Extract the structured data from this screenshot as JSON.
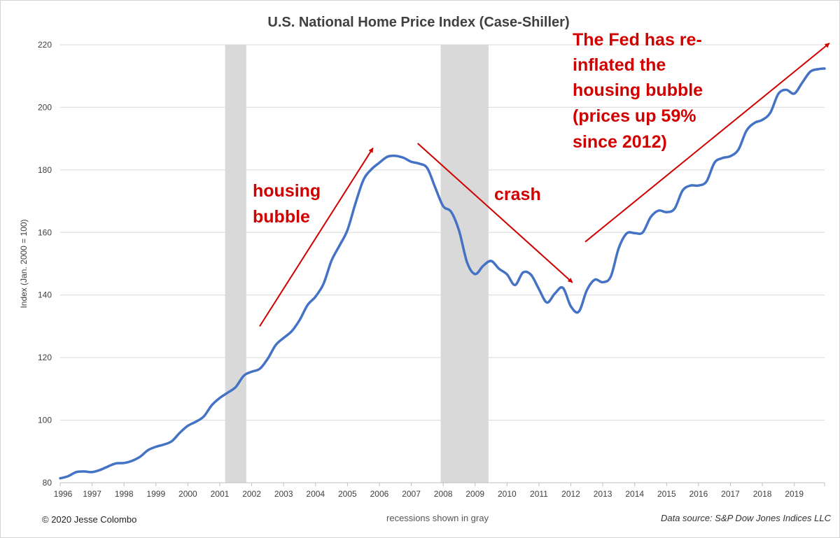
{
  "chart_data": {
    "type": "line",
    "title": "U.S. National Home Price Index (Case-Shiller)",
    "ylabel": "Index (Jan. 2000 = 100)",
    "xlabel": "",
    "xlim": [
      1996,
      2019.95
    ],
    "ylim": [
      80,
      220
    ],
    "yticks": [
      80,
      100,
      120,
      140,
      160,
      180,
      200,
      220
    ],
    "xticks": [
      "1996",
      "1997",
      "1998",
      "1999",
      "2000",
      "2001",
      "2002",
      "2003",
      "2004",
      "2005",
      "2006",
      "2007",
      "2008",
      "2009",
      "2010",
      "2011",
      "2012",
      "2013",
      "2014",
      "2015",
      "2016",
      "2017",
      "2018",
      "2019"
    ],
    "grid": "horizontal",
    "line_color": "#4472c4",
    "recession_color": "#d9d9d9",
    "annotation_color": "#d00000",
    "recessions": [
      [
        2001.17,
        2001.83
      ],
      [
        2007.92,
        2009.42
      ]
    ],
    "series": [
      {
        "points": [
          [
            1996.0,
            81.4
          ],
          [
            1996.25,
            82.1
          ],
          [
            1996.5,
            83.4
          ],
          [
            1996.75,
            83.6
          ],
          [
            1997.0,
            83.4
          ],
          [
            1997.25,
            84.1
          ],
          [
            1997.5,
            85.2
          ],
          [
            1997.75,
            86.2
          ],
          [
            1998.0,
            86.3
          ],
          [
            1998.25,
            87.0
          ],
          [
            1998.5,
            88.3
          ],
          [
            1998.75,
            90.4
          ],
          [
            1999.0,
            91.5
          ],
          [
            1999.25,
            92.2
          ],
          [
            1999.5,
            93.3
          ],
          [
            1999.75,
            96.0
          ],
          [
            2000.0,
            98.2
          ],
          [
            2000.25,
            99.5
          ],
          [
            2000.5,
            101.2
          ],
          [
            2000.75,
            104.8
          ],
          [
            2001.0,
            107.1
          ],
          [
            2001.25,
            108.8
          ],
          [
            2001.5,
            110.6
          ],
          [
            2001.75,
            114.2
          ],
          [
            2002.0,
            115.5
          ],
          [
            2002.25,
            116.4
          ],
          [
            2002.5,
            119.6
          ],
          [
            2002.75,
            124.0
          ],
          [
            2003.0,
            126.3
          ],
          [
            2003.25,
            128.4
          ],
          [
            2003.5,
            132.0
          ],
          [
            2003.75,
            136.8
          ],
          [
            2004.0,
            139.5
          ],
          [
            2004.25,
            143.6
          ],
          [
            2004.5,
            151.0
          ],
          [
            2004.75,
            155.8
          ],
          [
            2005.0,
            160.8
          ],
          [
            2005.25,
            169.3
          ],
          [
            2005.5,
            176.8
          ],
          [
            2005.75,
            180.2
          ],
          [
            2006.0,
            182.3
          ],
          [
            2006.25,
            184.2
          ],
          [
            2006.5,
            184.5
          ],
          [
            2006.75,
            183.9
          ],
          [
            2007.0,
            182.6
          ],
          [
            2007.25,
            182.0
          ],
          [
            2007.5,
            180.6
          ],
          [
            2007.75,
            174.4
          ],
          [
            2008.0,
            168.4
          ],
          [
            2008.25,
            166.6
          ],
          [
            2008.5,
            160.5
          ],
          [
            2008.75,
            150.4
          ],
          [
            2009.0,
            146.7
          ],
          [
            2009.25,
            149.3
          ],
          [
            2009.5,
            150.9
          ],
          [
            2009.75,
            148.4
          ],
          [
            2010.0,
            146.6
          ],
          [
            2010.25,
            143.2
          ],
          [
            2010.5,
            147.2
          ],
          [
            2010.75,
            146.5
          ],
          [
            2011.0,
            141.9
          ],
          [
            2011.25,
            137.6
          ],
          [
            2011.5,
            140.5
          ],
          [
            2011.75,
            142.3
          ],
          [
            2012.0,
            136.4
          ],
          [
            2012.25,
            134.7
          ],
          [
            2012.5,
            141.5
          ],
          [
            2012.75,
            144.9
          ],
          [
            2013.0,
            144.1
          ],
          [
            2013.25,
            145.9
          ],
          [
            2013.5,
            155.0
          ],
          [
            2013.75,
            159.7
          ],
          [
            2014.0,
            159.8
          ],
          [
            2014.25,
            160.0
          ],
          [
            2014.5,
            164.9
          ],
          [
            2014.75,
            167.0
          ],
          [
            2015.0,
            166.5
          ],
          [
            2015.25,
            167.6
          ],
          [
            2015.5,
            173.4
          ],
          [
            2015.75,
            175.0
          ],
          [
            2016.0,
            175.0
          ],
          [
            2016.25,
            176.3
          ],
          [
            2016.5,
            182.3
          ],
          [
            2016.75,
            183.8
          ],
          [
            2017.0,
            184.4
          ],
          [
            2017.25,
            186.5
          ],
          [
            2017.5,
            192.5
          ],
          [
            2017.75,
            195.0
          ],
          [
            2018.0,
            196.0
          ],
          [
            2018.25,
            198.3
          ],
          [
            2018.5,
            204.3
          ],
          [
            2018.75,
            205.6
          ],
          [
            2019.0,
            204.4
          ],
          [
            2019.25,
            207.9
          ],
          [
            2019.5,
            211.4
          ],
          [
            2019.75,
            212.2
          ],
          [
            2019.95,
            212.4
          ]
        ]
      }
    ],
    "annotations": [
      {
        "lines": [
          "housing",
          "bubble"
        ],
        "arrow_from": [
          2002.25,
          130
        ],
        "arrow_to": [
          2005.8,
          187
        ]
      },
      {
        "lines": [
          "crash"
        ],
        "arrow_from": [
          2007.2,
          188.5
        ],
        "arrow_to": [
          2012.05,
          144
        ]
      },
      {
        "lines": [
          "The Fed has re-",
          "inflated the",
          "housing bubble",
          "(prices up 59%",
          "since 2012)"
        ],
        "arrow_from": [
          2012.45,
          157
        ],
        "arrow_to": [
          2020.1,
          220.5
        ]
      }
    ]
  },
  "footer": {
    "copyright": "© 2020 Jesse Colombo",
    "recession_note": "recessions shown in gray",
    "source": "Data source: S&P Dow Jones Indices LLC"
  }
}
